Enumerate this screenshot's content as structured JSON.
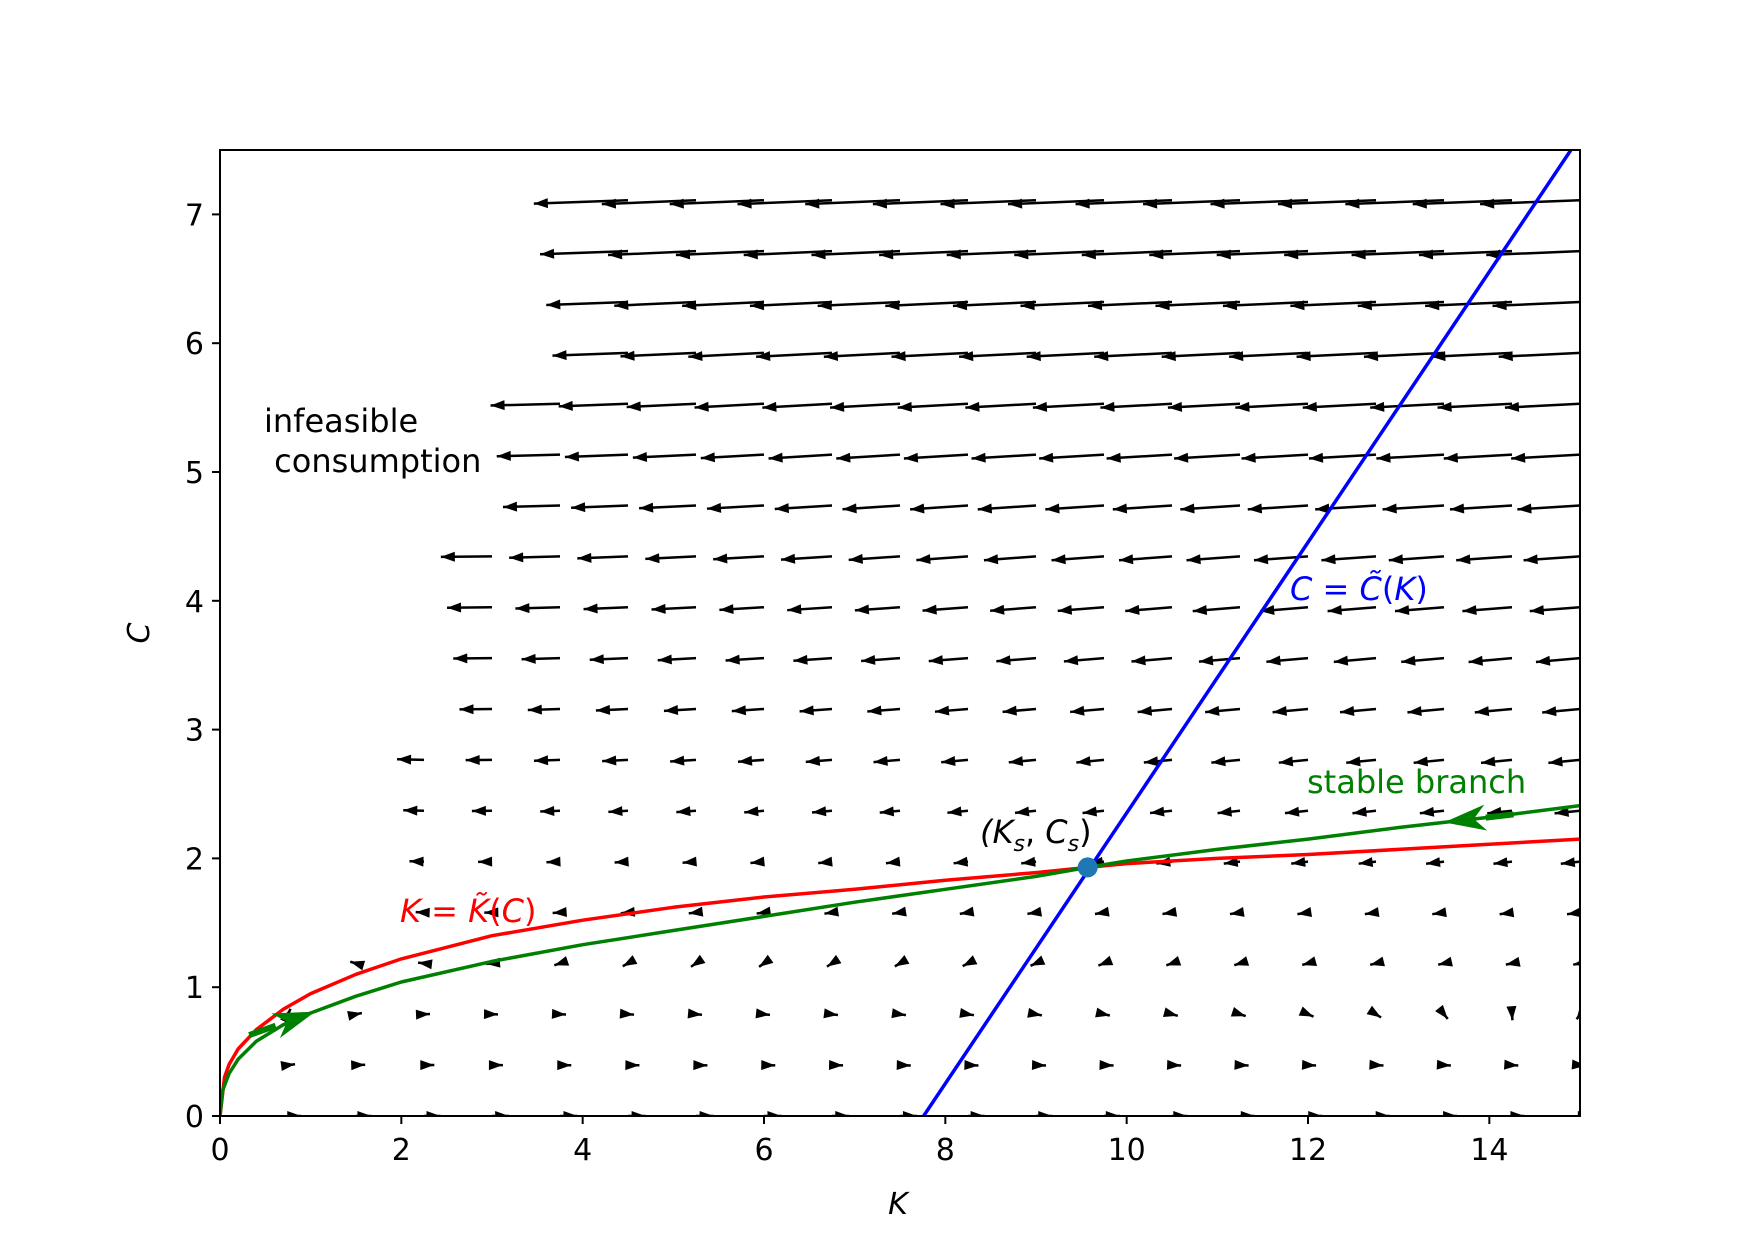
{
  "chart_data": {
    "type": "line",
    "xlabel": "K",
    "ylabel": "C",
    "xlim": [
      0,
      15
    ],
    "ylim": [
      0,
      7.5
    ],
    "xticks": [
      "0",
      "2",
      "4",
      "6",
      "8",
      "10",
      "12",
      "14"
    ],
    "yticks": [
      "0",
      "1",
      "2",
      "3",
      "4",
      "5",
      "6",
      "7"
    ],
    "grid": false,
    "series": [
      {
        "name": "K = K̃(C)",
        "color": "#ff0000",
        "points": [
          [
            0,
            0
          ],
          [
            0.05,
            0.3
          ],
          [
            0.1,
            0.4
          ],
          [
            0.2,
            0.52
          ],
          [
            0.4,
            0.67
          ],
          [
            0.7,
            0.83
          ],
          [
            1,
            0.95
          ],
          [
            1.5,
            1.1
          ],
          [
            2,
            1.22
          ],
          [
            3,
            1.4
          ],
          [
            4,
            1.52
          ],
          [
            5,
            1.62
          ],
          [
            6,
            1.7
          ],
          [
            7,
            1.76
          ],
          [
            8,
            1.83
          ],
          [
            9,
            1.89
          ],
          [
            9.57,
            1.93
          ],
          [
            10,
            1.96
          ],
          [
            11,
            2.0
          ],
          [
            12,
            2.03
          ],
          [
            13,
            2.07
          ],
          [
            14,
            2.11
          ],
          [
            15,
            2.15
          ]
        ]
      },
      {
        "name": "C = C̃(K)",
        "color": "#0000ff",
        "points": [
          [
            7.76,
            0
          ],
          [
            14.9,
            7.5
          ]
        ]
      },
      {
        "name": "stable branch",
        "color": "#008000",
        "points": [
          [
            0,
            0
          ],
          [
            0.03,
            0.2
          ],
          [
            0.1,
            0.33
          ],
          [
            0.2,
            0.44
          ],
          [
            0.4,
            0.58
          ],
          [
            0.7,
            0.71
          ],
          [
            1,
            0.8
          ],
          [
            1.5,
            0.93
          ],
          [
            2,
            1.04
          ],
          [
            3,
            1.2
          ],
          [
            4,
            1.33
          ],
          [
            5,
            1.44
          ],
          [
            6,
            1.55
          ],
          [
            7,
            1.66
          ],
          [
            8,
            1.76
          ],
          [
            9,
            1.86
          ],
          [
            9.57,
            1.93
          ],
          [
            10,
            1.98
          ],
          [
            11,
            2.07
          ],
          [
            12,
            2.15
          ],
          [
            13,
            2.24
          ],
          [
            14,
            2.32
          ],
          [
            15,
            2.41
          ]
        ]
      }
    ],
    "steady_state": {
      "x": 9.57,
      "y": 1.93,
      "color": "#1f77b4"
    },
    "stable_branch_arrows": [
      [
        1.05,
        0.81,
        1
      ],
      [
        13.5,
        2.28,
        -1
      ]
    ],
    "vector_field": {
      "kx": [
        0.75,
        1.5,
        2.25,
        3.0,
        3.75,
        4.5,
        5.25,
        6.0,
        6.75,
        7.5,
        8.25,
        9.0,
        9.75,
        10.5,
        11.25,
        12.0,
        12.75,
        13.5,
        14.25,
        15.0
      ],
      "cy": [
        0,
        0.395,
        0.79,
        1.185,
        1.58,
        1.975,
        2.37,
        2.765,
        3.16,
        3.555,
        3.95,
        4.345,
        4.74,
        5.135,
        5.53,
        5.925,
        6.32,
        6.715,
        7.11
      ],
      "color": "#000000"
    },
    "annotations": [
      {
        "id": "infeasible",
        "lines": [
          "infeasible",
          " consumption"
        ],
        "color": "#000000"
      },
      {
        "id": "steady-label",
        "text": "(Ks, Cs)",
        "color": "#000000"
      },
      {
        "id": "ktilde-label",
        "text": "K = K̃(C)",
        "color": "#ff0000"
      },
      {
        "id": "ctilde-label",
        "text": "C = C̃(K)",
        "color": "#0000ff"
      },
      {
        "id": "stable-label",
        "text": "stable branch",
        "color": "#008000"
      }
    ]
  }
}
